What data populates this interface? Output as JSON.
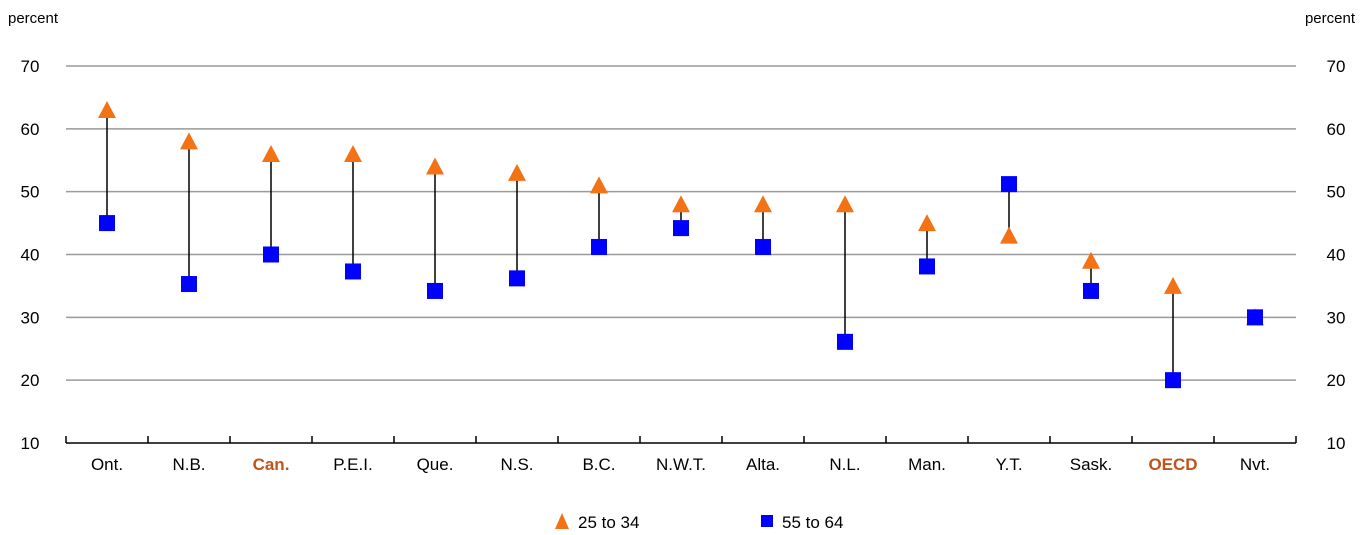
{
  "chart_data": {
    "type": "scatter",
    "y_unit_left": "percent",
    "y_unit_right": "percent",
    "ylim": [
      10,
      70
    ],
    "yticks": [
      10,
      20,
      30,
      40,
      50,
      60,
      70
    ],
    "grid": true,
    "categories": [
      "Ont.",
      "N.B.",
      "Can.",
      "P.E.I.",
      "Que.",
      "N.S.",
      "B.C.",
      "N.W.T.",
      "Alta.",
      "N.L.",
      "Man.",
      "Y.T.",
      "Sask.",
      "OECD",
      "Nvt."
    ],
    "highlighted_categories": [
      "Can.",
      "OECD"
    ],
    "series": [
      {
        "name": "25 to 34",
        "marker": "triangle",
        "color": "#f47216",
        "values": [
          63,
          58,
          56,
          56,
          54,
          53,
          51,
          48,
          48,
          48,
          45,
          43,
          39,
          35,
          30
        ]
      },
      {
        "name": "55 to 64",
        "marker": "square",
        "color": "#0000ff",
        "values": [
          45,
          35.3,
          40,
          37.3,
          34.2,
          36.2,
          41.2,
          44.2,
          41.2,
          26.1,
          38.1,
          51.2,
          34.2,
          20,
          30
        ]
      }
    ],
    "legend_position": "bottom-center",
    "highlight_color": "#c0541a"
  }
}
